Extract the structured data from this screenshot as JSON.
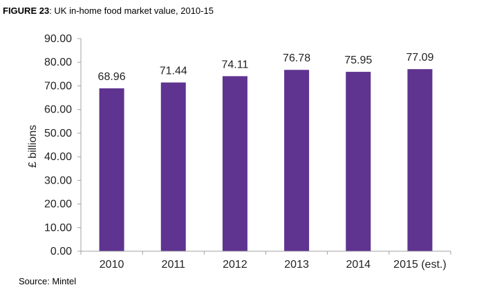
{
  "figure": {
    "label": "FIGURE 23",
    "title": "UK in-home food market value, 2010-15",
    "source": "Source: Mintel"
  },
  "chart_data": {
    "type": "bar",
    "title": "UK in-home food market value, 2010-15",
    "xlabel": "",
    "ylabel": "£ billions",
    "categories": [
      "2010",
      "2011",
      "2012",
      "2013",
      "2014",
      "2015 (est.)"
    ],
    "values": [
      68.96,
      71.44,
      74.11,
      76.78,
      75.95,
      77.09
    ],
    "data_labels": [
      "68.96",
      "71.44",
      "74.11",
      "76.78",
      "75.95",
      "77.09"
    ],
    "ylim": [
      0,
      90
    ],
    "yticks": [
      "0.00",
      "10.00",
      "20.00",
      "30.00",
      "40.00",
      "50.00",
      "60.00",
      "70.00",
      "80.00",
      "90.00"
    ],
    "bar_color": "#5f3390",
    "grid": false,
    "legend": "none"
  }
}
